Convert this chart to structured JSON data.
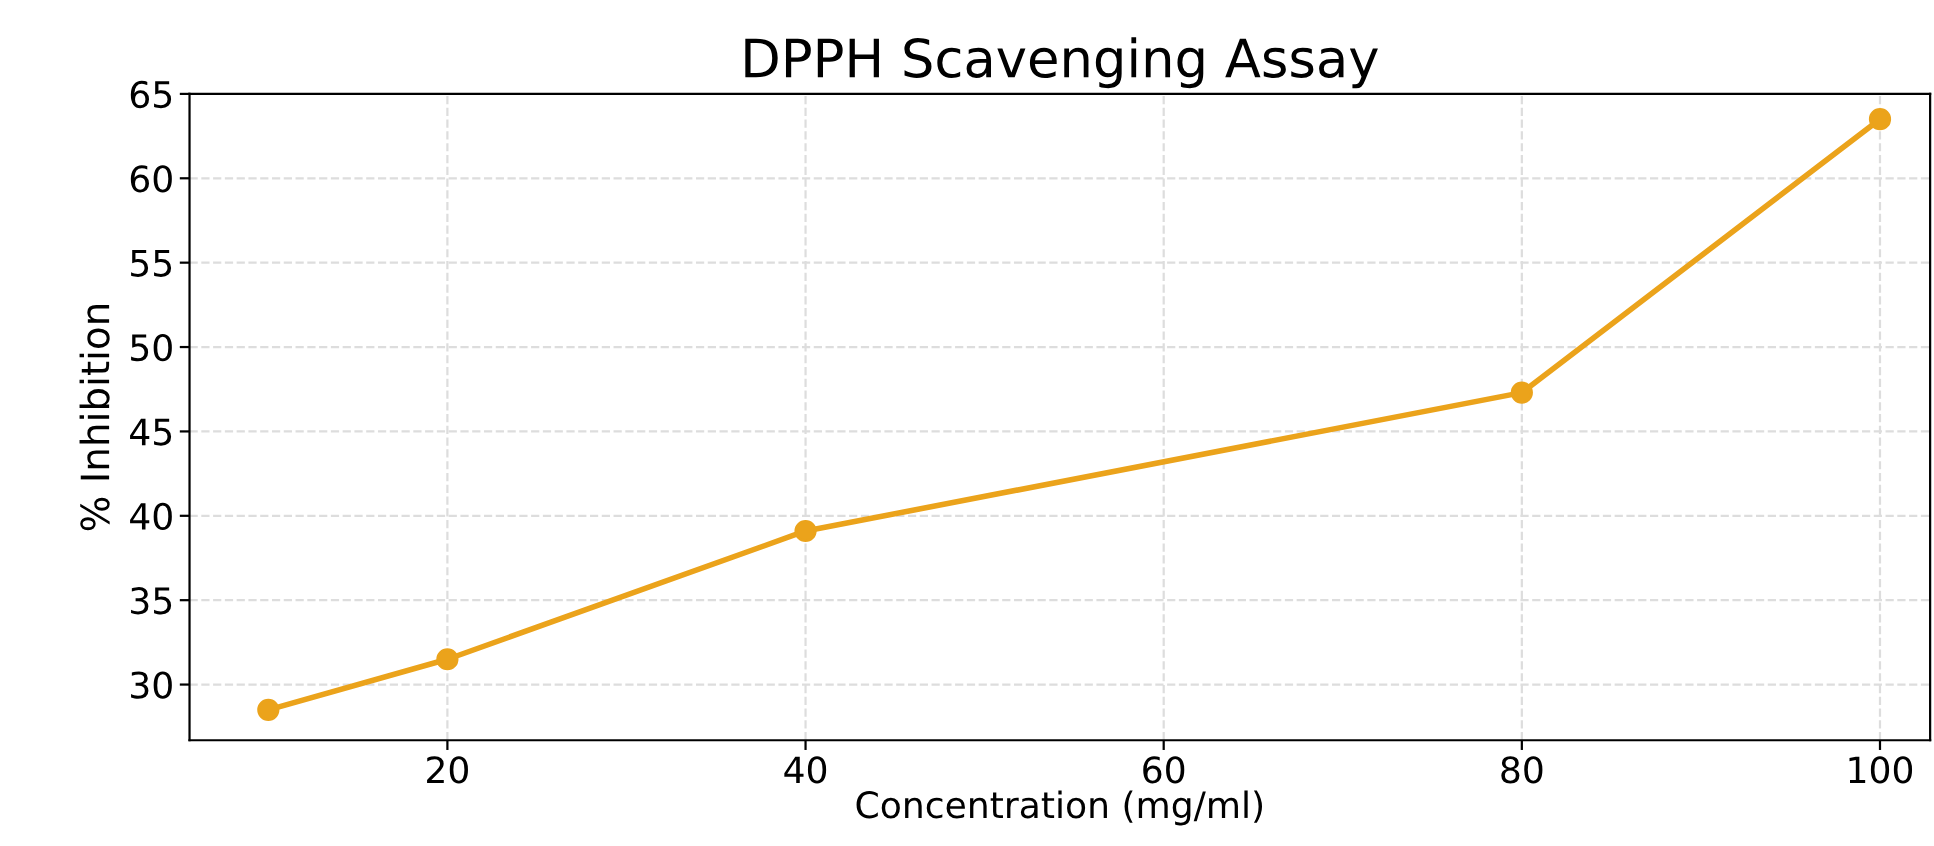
{
  "chart_data": {
    "type": "line",
    "title": "DPPH Scavenging Assay",
    "xlabel": "Concentration (mg/ml)",
    "ylabel": "% Inhibition",
    "series": [
      {
        "color": "#eba31b",
        "x": [
          10,
          20,
          40,
          80,
          100
        ],
        "values": [
          28.5,
          31.5,
          39.1,
          47.3,
          63.5
        ]
      }
    ],
    "xlim": [
      5.6,
      102.8
    ],
    "xticks": [
      20,
      40,
      60,
      80,
      100
    ],
    "ylim": [
      26.7,
      65
    ],
    "yticks": [
      30,
      35,
      40,
      45,
      50,
      55,
      60,
      65
    ],
    "grid": true,
    "marker": "circle",
    "line_style": "solid"
  }
}
